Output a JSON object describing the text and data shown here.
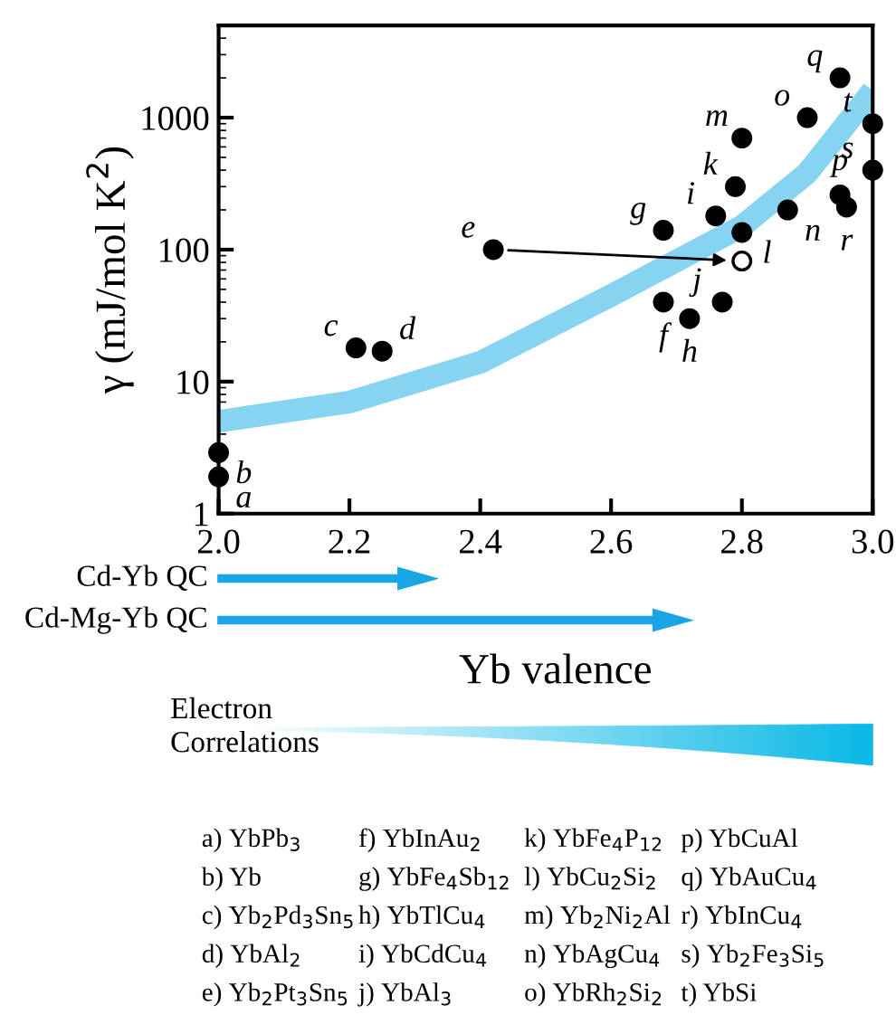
{
  "chart_data": {
    "type": "scatter",
    "xlabel": "Yb valence",
    "ylabel": "γ (mJ/mol K$^{2}$)",
    "xlim": [
      2.0,
      3.0
    ],
    "xticks": [
      {
        "value": 2.0,
        "label": "2.0"
      },
      2.2,
      2.4,
      2.6,
      2.8,
      {
        "value": 3.0,
        "label": "3.0"
      }
    ],
    "ylim": [
      1,
      5000
    ],
    "yticks": [
      1,
      10,
      100,
      1000
    ],
    "log": "y",
    "grid": false,
    "marker": "circle",
    "series": [
      {
        "type": "line",
        "marker": "none",
        "color": "#87d3f2",
        "x": [
          2.0,
          2.2,
          2.4,
          2.6,
          2.8,
          2.9,
          3.0
        ],
        "values": [
          5,
          7,
          14,
          45,
          150,
          380,
          1600
        ]
      },
      {
        "color": "#000000",
        "x": [
          2.0,
          2.0,
          2.21,
          2.25,
          2.42,
          2.68,
          2.68,
          2.72,
          2.76,
          2.77,
          2.79,
          2.8,
          2.8,
          2.87,
          2.9,
          2.95,
          2.95,
          2.96,
          3.0,
          3.0
        ],
        "values": [
          1.9,
          2.9,
          18,
          17,
          100,
          40,
          140,
          30,
          180,
          40,
          300,
          135,
          700,
          200,
          1000,
          260,
          2000,
          210,
          400,
          900
        ],
        "value_labels": [
          "a",
          "b",
          "c",
          "d",
          "e",
          "f",
          "g",
          "h",
          "i",
          "j",
          "k",
          "l",
          "m",
          "n",
          "o",
          "p",
          "q",
          "r",
          "s",
          "t"
        ]
      },
      {
        "color": "#ffffff",
        "x": [
          2.8
        ],
        "values": [
          82
        ]
      }
    ],
    "annotations": [
      "Cd-Yb QC",
      "Cd-Mg-Yb QC",
      "Electron\nCorrelations",
      "a) YbPb$_{3}$",
      "b) Yb",
      "c) Yb$_{2}$Pd$_{3}$Sn$_{5}$",
      "d) YbAl$_{2}$",
      "e) Yb$_{2}$Pt$_{3}$Sn$_{5}$",
      "f) YbInAu$_{2}$",
      "g) YbFe$_{4}$Sb$_{12}$",
      "h) YbTlCu$_{4}$",
      "i) YbCdCu$_{4}$",
      "j) YbAl$_{3}$",
      "k) YbFe$_{4}$P$_{12}$",
      "l) YbCu$_{2}$Si$_{2}$",
      "m) Yb$_{2}$Ni$_{2}$Al",
      "n) YbAgCu$_{4}$",
      "o) YbRh$_{2}$Si$_{2}$",
      "p) YbCuAl",
      "q) YbAuCu$_{4}$",
      "r) YbInCu$_{4}$",
      "s) Yb$_{2}$Fe$_{3}$Si$_{5}$",
      "t) YbSi"
    ]
  }
}
